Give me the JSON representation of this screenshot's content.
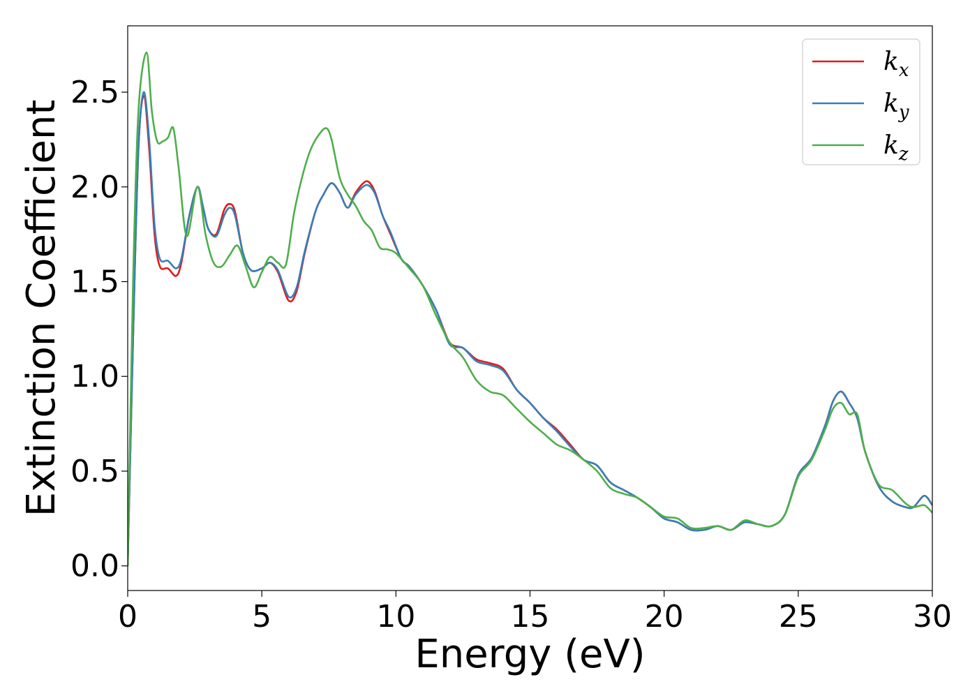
{
  "chart_data": {
    "type": "line",
    "title": "",
    "xlabel": "Energy (eV)",
    "ylabel": "Extinction Coefficient",
    "xlim": [
      0,
      30
    ],
    "ylim": [
      -0.13,
      2.85
    ],
    "xticks": [
      0,
      5,
      10,
      15,
      20,
      25,
      30
    ],
    "xtick_labels": [
      "0",
      "5",
      "10",
      "15",
      "20",
      "25",
      "30"
    ],
    "yticks": [
      0.0,
      0.5,
      1.0,
      1.5,
      2.0,
      2.5
    ],
    "ytick_labels": [
      "0.0",
      "0.5",
      "1.0",
      "1.5",
      "2.0",
      "2.5"
    ],
    "grid": false,
    "legend_position": "top-right",
    "series": [
      {
        "name": "k_x",
        "label_base": "k",
        "label_sub": "x",
        "color": "#e41a1c",
        "x": [
          0,
          0.2,
          0.4,
          0.6,
          0.8,
          1.0,
          1.2,
          1.5,
          1.8,
          2.0,
          2.3,
          2.6,
          2.8,
          3.0,
          3.3,
          3.6,
          3.8,
          4.0,
          4.3,
          4.6,
          5.0,
          5.3,
          5.6,
          6.0,
          6.3,
          6.6,
          7.0,
          7.3,
          7.6,
          7.9,
          8.2,
          8.5,
          8.9,
          9.2,
          9.5,
          9.8,
          10.2,
          10.5,
          11.0,
          11.5,
          12.0,
          12.5,
          13.0,
          13.5,
          14.0,
          14.5,
          15.0,
          15.5,
          16.0,
          16.5,
          17.0,
          17.5,
          18.0,
          18.5,
          19.0,
          19.5,
          20.0,
          20.5,
          21.0,
          21.5,
          22.0,
          22.5,
          23.0,
          23.5,
          24.0,
          24.5,
          25.0,
          25.5,
          26.0,
          26.3,
          26.6,
          26.9,
          27.2,
          27.5,
          28.0,
          28.5,
          29.0,
          29.3,
          29.7,
          30.0
        ],
        "y": [
          0.0,
          1.2,
          2.2,
          2.48,
          2.2,
          1.75,
          1.58,
          1.57,
          1.53,
          1.6,
          1.85,
          2.0,
          1.9,
          1.78,
          1.75,
          1.88,
          1.91,
          1.87,
          1.65,
          1.56,
          1.57,
          1.6,
          1.55,
          1.4,
          1.45,
          1.65,
          1.87,
          1.96,
          2.02,
          1.97,
          1.89,
          1.97,
          2.03,
          1.98,
          1.85,
          1.75,
          1.62,
          1.58,
          1.48,
          1.35,
          1.18,
          1.15,
          1.09,
          1.07,
          1.04,
          0.93,
          0.86,
          0.78,
          0.72,
          0.64,
          0.56,
          0.53,
          0.44,
          0.4,
          0.36,
          0.31,
          0.25,
          0.23,
          0.19,
          0.19,
          0.21,
          0.19,
          0.23,
          0.22,
          0.21,
          0.27,
          0.48,
          0.57,
          0.74,
          0.87,
          0.92,
          0.86,
          0.78,
          0.6,
          0.42,
          0.34,
          0.31,
          0.31,
          0.37,
          0.32
        ]
      },
      {
        "name": "k_y",
        "label_base": "k",
        "label_sub": "y",
        "color": "#377eb8",
        "x": [
          0,
          0.2,
          0.4,
          0.6,
          0.8,
          1.0,
          1.2,
          1.5,
          1.8,
          2.0,
          2.3,
          2.6,
          2.8,
          3.0,
          3.3,
          3.6,
          3.8,
          4.0,
          4.3,
          4.6,
          5.0,
          5.3,
          5.6,
          6.0,
          6.3,
          6.6,
          7.0,
          7.3,
          7.6,
          7.9,
          8.2,
          8.5,
          8.9,
          9.2,
          9.5,
          9.8,
          10.2,
          10.5,
          11.0,
          11.5,
          12.0,
          12.5,
          13.0,
          13.5,
          14.0,
          14.5,
          15.0,
          15.5,
          16.0,
          16.5,
          17.0,
          17.5,
          18.0,
          18.5,
          19.0,
          19.5,
          20.0,
          20.5,
          21.0,
          21.5,
          22.0,
          22.5,
          23.0,
          23.5,
          24.0,
          24.5,
          25.0,
          25.5,
          26.0,
          26.3,
          26.6,
          26.9,
          27.2,
          27.5,
          28.0,
          28.5,
          29.0,
          29.3,
          29.7,
          30.0
        ],
        "y": [
          0.0,
          1.2,
          2.2,
          2.5,
          2.25,
          1.8,
          1.62,
          1.61,
          1.57,
          1.62,
          1.85,
          2.0,
          1.9,
          1.78,
          1.74,
          1.85,
          1.89,
          1.85,
          1.65,
          1.56,
          1.57,
          1.6,
          1.56,
          1.42,
          1.47,
          1.66,
          1.87,
          1.96,
          2.02,
          1.97,
          1.89,
          1.96,
          2.01,
          1.97,
          1.85,
          1.76,
          1.62,
          1.58,
          1.48,
          1.35,
          1.17,
          1.15,
          1.08,
          1.06,
          1.03,
          0.93,
          0.86,
          0.78,
          0.71,
          0.63,
          0.56,
          0.53,
          0.44,
          0.4,
          0.36,
          0.31,
          0.25,
          0.23,
          0.19,
          0.19,
          0.21,
          0.19,
          0.23,
          0.22,
          0.21,
          0.27,
          0.48,
          0.57,
          0.74,
          0.87,
          0.92,
          0.86,
          0.78,
          0.6,
          0.42,
          0.34,
          0.31,
          0.31,
          0.37,
          0.32
        ]
      },
      {
        "name": "k_z",
        "label_base": "k",
        "label_sub": "z",
        "color": "#4daf4a",
        "x": [
          0,
          0.2,
          0.4,
          0.7,
          0.9,
          1.1,
          1.3,
          1.5,
          1.7,
          1.9,
          2.2,
          2.6,
          2.9,
          3.2,
          3.5,
          3.8,
          4.1,
          4.4,
          4.7,
          5.0,
          5.3,
          5.6,
          5.9,
          6.2,
          6.5,
          6.8,
          7.1,
          7.4,
          7.6,
          7.9,
          8.2,
          8.5,
          8.8,
          9.1,
          9.4,
          9.7,
          10.0,
          10.5,
          11.0,
          11.5,
          12.0,
          12.5,
          13.0,
          13.5,
          14.0,
          14.5,
          15.0,
          15.5,
          16.0,
          16.5,
          17.0,
          17.5,
          18.0,
          18.5,
          19.0,
          19.5,
          20.0,
          20.5,
          21.0,
          21.5,
          22.0,
          22.5,
          23.0,
          23.5,
          24.0,
          24.5,
          25.0,
          25.5,
          26.0,
          26.3,
          26.6,
          26.9,
          27.2,
          27.5,
          28.0,
          28.5,
          29.0,
          29.3,
          29.7,
          30.0
        ],
        "y": [
          0.0,
          1.5,
          2.4,
          2.71,
          2.4,
          2.24,
          2.24,
          2.26,
          2.31,
          2.1,
          1.74,
          2.0,
          1.75,
          1.6,
          1.58,
          1.64,
          1.69,
          1.58,
          1.47,
          1.55,
          1.63,
          1.6,
          1.59,
          1.86,
          2.05,
          2.19,
          2.27,
          2.31,
          2.25,
          2.05,
          1.96,
          1.9,
          1.82,
          1.77,
          1.68,
          1.67,
          1.65,
          1.57,
          1.48,
          1.32,
          1.18,
          1.1,
          0.98,
          0.92,
          0.9,
          0.83,
          0.76,
          0.7,
          0.64,
          0.61,
          0.56,
          0.5,
          0.41,
          0.38,
          0.36,
          0.31,
          0.26,
          0.25,
          0.2,
          0.2,
          0.21,
          0.19,
          0.24,
          0.22,
          0.21,
          0.27,
          0.47,
          0.56,
          0.72,
          0.83,
          0.86,
          0.8,
          0.8,
          0.6,
          0.43,
          0.4,
          0.33,
          0.31,
          0.32,
          0.28
        ]
      }
    ]
  }
}
